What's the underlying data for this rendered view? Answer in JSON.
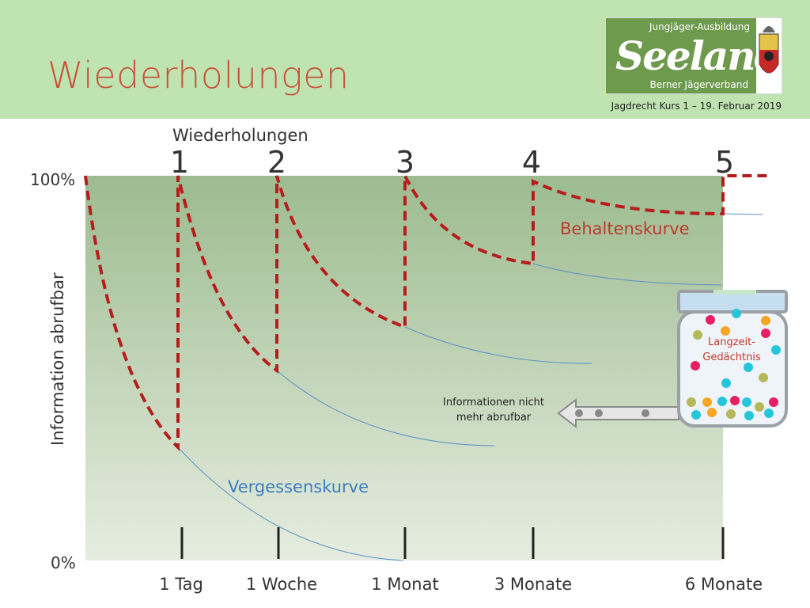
{
  "slide": {
    "title": "Wiederholungen",
    "course": "Jagdrecht Kurs 1 – 19. Februar 2019"
  },
  "logo": {
    "top_text": "Jungjäger-Ausbildung",
    "main_text": "Seeland",
    "sub_text": "Berner Jägerverband"
  },
  "diagram": {
    "repetitions_label": "Wiederholungen",
    "repetition_numbers": [
      "1",
      "2",
      "3",
      "4",
      "5"
    ],
    "y_axis_label": "Information abrufbar",
    "y_max_label": "100%",
    "y_min_label": "0%",
    "time_labels": [
      "1 Tag",
      "1 Woche",
      "1 Monat",
      "3 Monate",
      "6 Monate"
    ],
    "retention_label": "Behaltenskurve",
    "forgetting_label": "Vergessenskurve",
    "jar_label_line1": "Langzeit-",
    "jar_label_line2": "Gedächtnis",
    "lost_info_line1": "Informationen nicht",
    "lost_info_line2": "mehr abrufbar"
  },
  "colors": {
    "header_bg": "#bfe4b2",
    "title": "#c8553a",
    "retention": "#b71c1c",
    "forgetting": "#5b8fc9",
    "retention_text": "#c0392b",
    "forgetting_text": "#3d7dc4"
  }
}
